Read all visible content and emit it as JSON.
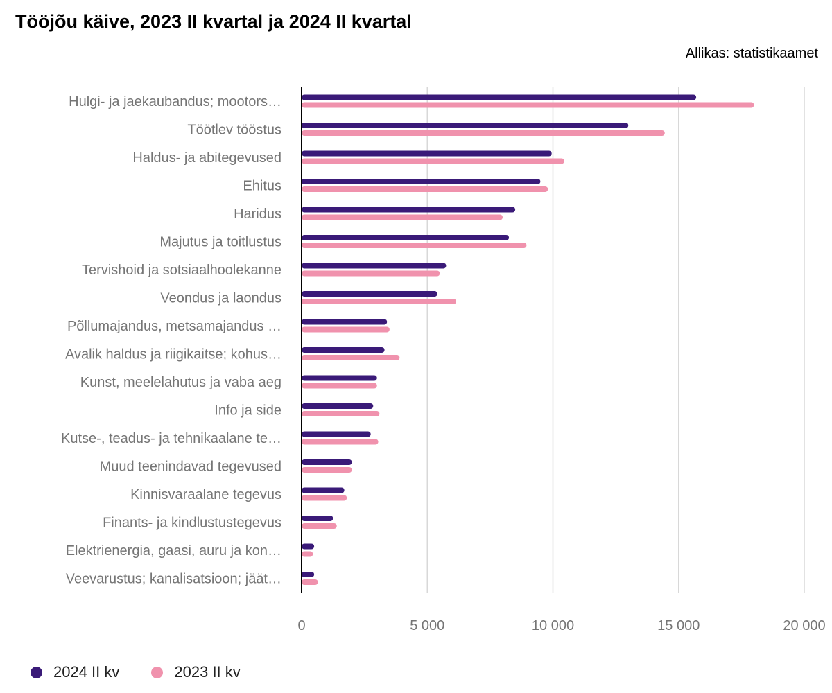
{
  "header": {
    "title": "Tööjõu käive, 2023 II kvartal ja 2024 II kvartal",
    "source": "Allikas: statistikaamet"
  },
  "colors": {
    "series_2024": "#3a1a78",
    "series_2023": "#f092ad",
    "grid": "#d8d8d8",
    "axis": "#000000"
  },
  "chart_data": {
    "type": "bar",
    "orientation": "horizontal",
    "title": "Tööjõu käive, 2023 II kvartal ja 2024 II kvartal",
    "xlabel": "",
    "ylabel": "",
    "xlim": [
      0,
      20000
    ],
    "grid": true,
    "legend_position": "bottom-left",
    "ticks": [
      {
        "value": 0,
        "label": "0"
      },
      {
        "value": 5000,
        "label": "5 000"
      },
      {
        "value": 10000,
        "label": "10 000"
      },
      {
        "value": 15000,
        "label": "15 000"
      },
      {
        "value": 20000,
        "label": "20 000"
      }
    ],
    "categories": [
      "Hulgi- ja jaekaubandus; mootors…",
      "Töötlev tööstus",
      "Haldus- ja abitegevused",
      "Ehitus",
      "Haridus",
      "Majutus ja toitlustus",
      "Tervishoid ja sotsiaalhoolekanne",
      "Veondus ja laondus",
      "Põllumajandus, metsamajandus …",
      "Avalik haldus ja riigikaitse; kohus…",
      "Kunst, meelelahutus ja vaba aeg",
      "Info ja side",
      "Kutse-, teadus- ja tehnikaalane te…",
      "Muud teenindavad tegevused",
      "Kinnisvaraalane tegevus",
      "Finants- ja kindlustustegevus",
      "Elektrienergia, gaasi, auru ja kon…",
      "Veevarustus; kanalisatsioon; jäät…"
    ],
    "series": [
      {
        "name": "2024 II kv",
        "values": [
          15700,
          13000,
          9950,
          9500,
          8500,
          8250,
          5750,
          5400,
          3400,
          3300,
          3000,
          2850,
          2750,
          2000,
          1700,
          1250,
          500,
          500
        ]
      },
      {
        "name": "2023 II kv",
        "values": [
          18000,
          14450,
          10450,
          9800,
          8000,
          8950,
          5500,
          6150,
          3500,
          3900,
          3000,
          3100,
          3050,
          2000,
          1800,
          1400,
          450,
          650
        ]
      }
    ]
  }
}
